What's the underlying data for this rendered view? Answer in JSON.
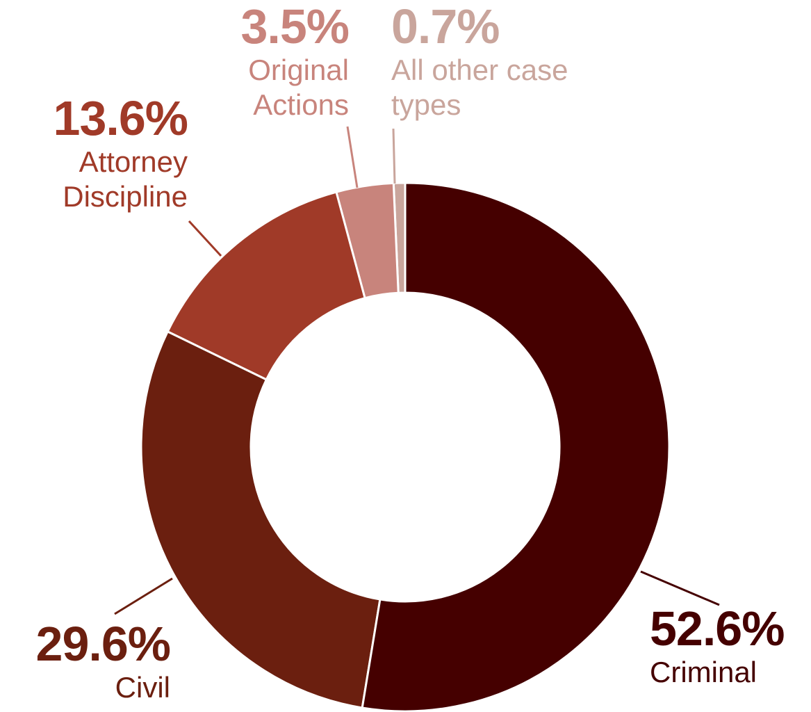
{
  "chart_data": {
    "type": "donut",
    "categories": [
      "Criminal",
      "Civil",
      "Attorney Discipline",
      "Original Actions",
      "All other case types"
    ],
    "values": [
      52.6,
      29.6,
      13.6,
      3.5,
      0.7
    ],
    "value_labels": [
      "52.6%",
      "29.6%",
      "13.6%",
      "3.5%",
      "0.7%"
    ],
    "colors": [
      "#450000",
      "#6b1f0f",
      "#a03a28",
      "#c8847c",
      "#c9a59c"
    ]
  }
}
